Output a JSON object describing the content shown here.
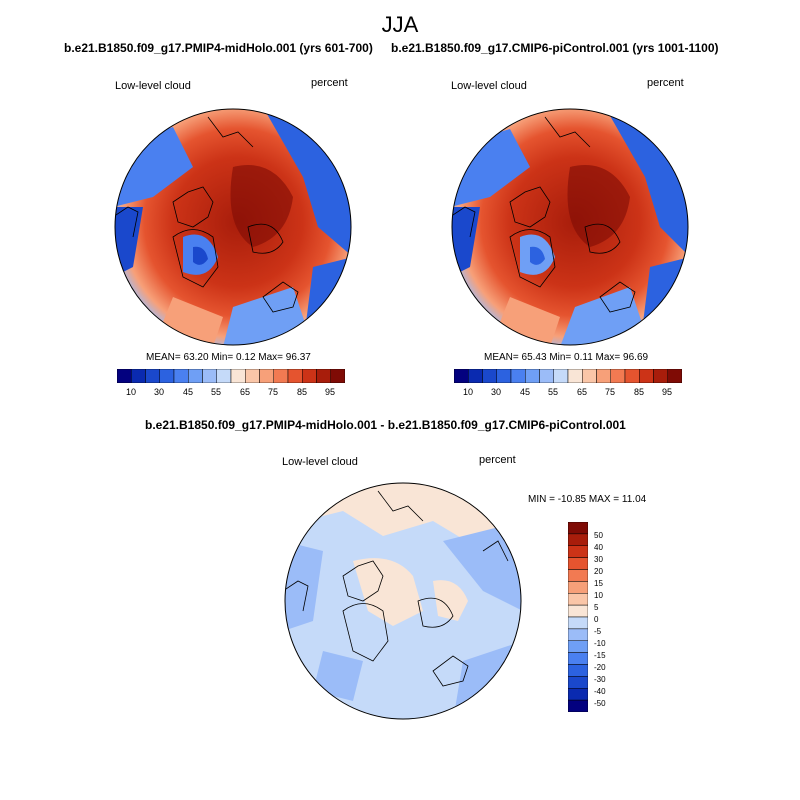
{
  "figure": {
    "season": "JJA",
    "colorbar_colors": [
      "#03017f",
      "#0a2ab0",
      "#1a48cc",
      "#2c62e0",
      "#4a80f0",
      "#6f9ff5",
      "#9bbcf8",
      "#c5daf9",
      "#f9e5d6",
      "#fac6a8",
      "#f7a079",
      "#f27a52",
      "#e5542f",
      "#cc3317",
      "#a81d0b",
      "#7f0b05"
    ],
    "panels": [
      {
        "title": "b.e21.B1850.f09_g17.PMIP4-midHolo.001 (yrs 601-700)",
        "variable": "Low-level cloud",
        "units": "percent",
        "stats": "MEAN=  63.20  Min=   0.12  Max=  96.37",
        "colorbar_ticks": [
          "10",
          "30",
          "45",
          "55",
          "65",
          "75",
          "85",
          "95"
        ]
      },
      {
        "title": "b.e21.B1850.f09_g17.CMIP6-piControl.001 (yrs 1001-1100)",
        "variable": "Low-level cloud",
        "units": "percent",
        "stats": "MEAN=  65.43  Min=   0.11  Max=  96.69",
        "colorbar_ticks": [
          "10",
          "30",
          "45",
          "55",
          "65",
          "75",
          "85",
          "95"
        ]
      }
    ],
    "difference": {
      "title": "b.e21.B1850.f09_g17.PMIP4-midHolo.001 - b.e21.B1850.f09_g17.CMIP6-piControl.001",
      "variable": "Low-level cloud",
      "units": "percent",
      "minmax": "MIN = -10.85 MAX =  11.04",
      "colorbar_ticks": [
        "50",
        "40",
        "30",
        "20",
        "15",
        "10",
        "5",
        "0",
        "-5",
        "-10",
        "-15",
        "-20",
        "-30",
        "-40",
        "-50"
      ],
      "colorbar_colors": [
        "#7f0b05",
        "#a81d0b",
        "#cc3317",
        "#e5542f",
        "#f27a52",
        "#f7a079",
        "#fac6a8",
        "#f9e5d6",
        "#c5daf9",
        "#9bbcf8",
        "#6f9ff5",
        "#4a80f0",
        "#2c62e0",
        "#1a48cc",
        "#0a2ab0",
        "#03017f"
      ]
    }
  }
}
